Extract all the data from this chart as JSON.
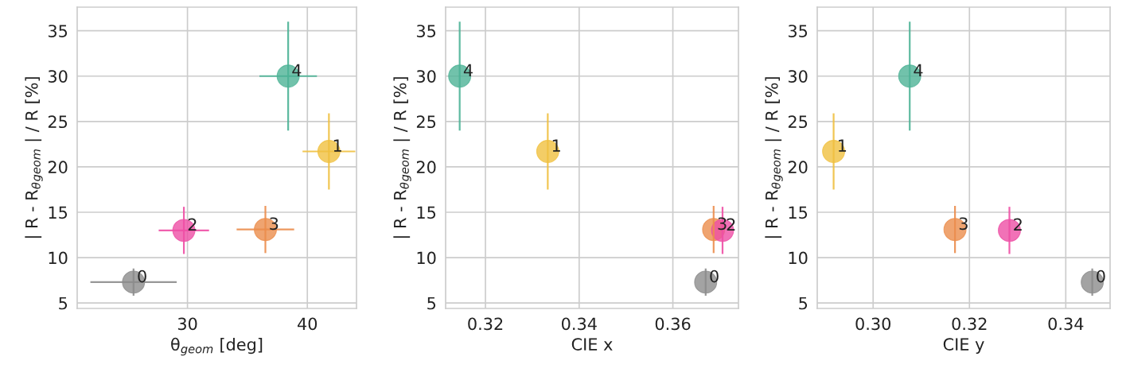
{
  "chart_data": [
    {
      "type": "scatter",
      "xlabel": "θ$_{geom}$ [deg]",
      "ylabel": "| R - R$_{θ}$$_{geom}$ | / R [%]",
      "xlim": [
        20.8,
        44.1
      ],
      "xticks": [
        30,
        40
      ],
      "ylim": [
        4.4,
        37.6
      ],
      "yticks": [
        5,
        10,
        15,
        20,
        25,
        30,
        35
      ],
      "grid": true,
      "marker": "circle",
      "series": [
        {
          "colors": [
            "#8c8c8c",
            "#f0c040",
            "#ee4fa5",
            "#eb8d4c",
            "#4db396"
          ],
          "x": [
            25.5,
            41.8,
            29.7,
            36.5,
            38.4
          ],
          "values": [
            7.3,
            21.7,
            13.0,
            13.1,
            30.0
          ],
          "errors": [
            1.5,
            4.2,
            2.6,
            2.6,
            6.0
          ],
          "xerrors": [
            3.6,
            2.2,
            2.1,
            2.4,
            2.4
          ]
        }
      ],
      "annotations": [
        {
          "text": "0",
          "x": 25.5,
          "y": 7.3
        },
        {
          "text": "1",
          "x": 41.8,
          "y": 21.7
        },
        {
          "text": "2",
          "x": 29.7,
          "y": 13.0
        },
        {
          "text": "3",
          "x": 36.5,
          "y": 13.1
        },
        {
          "text": "4",
          "x": 38.4,
          "y": 30.0
        }
      ]
    },
    {
      "type": "scatter",
      "xlabel": "CIE x",
      "ylabel": "| R - R$_{θ}$$_{geom}$ | / R [%]",
      "xlim": [
        0.3115,
        0.374
      ],
      "xticks": [
        {
          "value": 0.32,
          "label": "0.32"
        },
        {
          "value": 0.34,
          "label": "0.34"
        },
        {
          "value": 0.36,
          "label": "0.36"
        }
      ],
      "ylim": [
        4.4,
        37.6
      ],
      "yticks": [
        5,
        10,
        15,
        20,
        25,
        30,
        35
      ],
      "grid": true,
      "marker": "circle",
      "series": [
        {
          "colors": [
            "#8c8c8c",
            "#f0c040",
            "#eb8d4c",
            "#ee4fa5",
            "#4db396"
          ],
          "x": [
            0.367,
            0.3333,
            0.3687,
            0.3706,
            0.3145
          ],
          "values": [
            7.3,
            21.7,
            13.1,
            13.0,
            30.0
          ],
          "errors": [
            1.5,
            4.2,
            2.6,
            2.6,
            6.0
          ]
        }
      ],
      "annotations": [
        {
          "text": "0",
          "x": 0.367,
          "y": 7.3
        },
        {
          "text": "1",
          "x": 0.3333,
          "y": 21.7
        },
        {
          "text": "3",
          "x": 0.3687,
          "y": 13.1
        },
        {
          "text": "2",
          "x": 0.3706,
          "y": 13.0
        },
        {
          "text": "4",
          "x": 0.3145,
          "y": 30.0
        }
      ]
    },
    {
      "type": "scatter",
      "xlabel": "CIE y",
      "ylabel": "| R - R$_{θ}$$_{geom}$ | / R [%]",
      "xlim": [
        0.2884,
        0.3492
      ],
      "xticks": [
        {
          "value": 0.3,
          "label": "0.30"
        },
        {
          "value": 0.32,
          "label": "0.32"
        },
        {
          "value": 0.34,
          "label": "0.34"
        }
      ],
      "ylim": [
        4.4,
        37.6
      ],
      "yticks": [
        5,
        10,
        15,
        20,
        25,
        30,
        35
      ],
      "grid": true,
      "marker": "circle",
      "series": [
        {
          "colors": [
            "#8c8c8c",
            "#f0c040",
            "#ee4fa5",
            "#eb8d4c",
            "#4db396"
          ],
          "x": [
            0.3455,
            0.2918,
            0.3283,
            0.317,
            0.3076
          ],
          "values": [
            7.3,
            21.7,
            13.0,
            13.1,
            30.0
          ],
          "errors": [
            1.5,
            4.2,
            2.6,
            2.6,
            6.0
          ]
        }
      ],
      "annotations": [
        {
          "text": "0",
          "x": 0.3455,
          "y": 7.3
        },
        {
          "text": "1",
          "x": 0.2918,
          "y": 21.7
        },
        {
          "text": "2",
          "x": 0.3283,
          "y": 13.0
        },
        {
          "text": "3",
          "x": 0.317,
          "y": 13.1
        },
        {
          "text": "4",
          "x": 0.3076,
          "y": 30.0
        }
      ]
    }
  ]
}
